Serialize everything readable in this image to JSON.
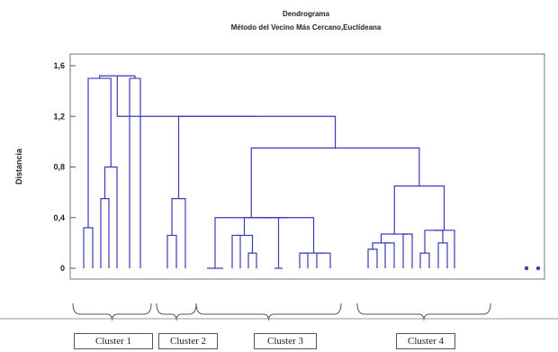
{
  "chart_data": {
    "type": "dendrogram",
    "title": "Dendrograma",
    "subtitle": "Método del Vecino Más Cercano,Euclídeana",
    "ylabel": "Distancia",
    "ylim": [
      0,
      1.6
    ],
    "yticks": [
      "0",
      "0,4",
      "0,8",
      "1,2",
      "1,6"
    ],
    "grid": false,
    "line_color": "#3a3ab8",
    "leaf_count": 36,
    "merges": [
      {
        "a": 0,
        "b": 1,
        "h": 0.32
      },
      {
        "a": 2,
        "b": 3,
        "h": 0.55
      },
      {
        "a": 2,
        "b": 4,
        "h": 0.8
      },
      {
        "a": 0,
        "b": 2,
        "h": 1.5
      },
      {
        "a": 5,
        "b": 6,
        "h": 1.5
      },
      {
        "a": 0,
        "b": 5,
        "h": 1.52
      },
      {
        "a": 7,
        "b": 8,
        "h": 0.26
      },
      {
        "a": 7,
        "b": 9,
        "h": 0.55
      },
      {
        "a": 10,
        "b": 11,
        "h": 0.0
      },
      {
        "a": 12,
        "b": 13,
        "h": 0.26
      },
      {
        "a": 14,
        "b": 15,
        "h": 0.12
      },
      {
        "a": 12,
        "b": 14,
        "h": 0.26
      },
      {
        "a": 16,
        "b": 17,
        "h": 0.0
      },
      {
        "a": 18,
        "b": 19,
        "h": 0.12
      },
      {
        "a": 20,
        "b": 21,
        "h": 0.12
      },
      {
        "a": 18,
        "b": 20,
        "h": 0.12
      },
      {
        "a": 12,
        "b": 16,
        "h": 0.4
      },
      {
        "a": 12,
        "b": 18,
        "h": 0.4
      },
      {
        "a": 10,
        "b": 12,
        "h": 0.4
      },
      {
        "a": 22,
        "b": 23,
        "h": 0.15
      },
      {
        "a": 24,
        "b": 25,
        "h": 0.2
      },
      {
        "a": 22,
        "b": 24,
        "h": 0.2
      },
      {
        "a": 26,
        "b": 27,
        "h": 0.27
      },
      {
        "a": 22,
        "b": 26,
        "h": 0.27
      },
      {
        "a": 28,
        "b": 29,
        "h": 0.12
      },
      {
        "a": 30,
        "b": 31,
        "h": 0.2
      },
      {
        "a": 28,
        "b": 30,
        "h": 0.3
      },
      {
        "a": 28,
        "b": 32,
        "h": 0.3
      },
      {
        "a": 22,
        "b": 28,
        "h": 0.65
      },
      {
        "a": 10,
        "b": 22,
        "h": 0.95
      },
      {
        "a": 7,
        "b": 10,
        "h": 1.2
      },
      {
        "a": 0,
        "b": 7,
        "h": 1.2
      }
    ],
    "extra_points": [
      0.0,
      0.0
    ],
    "clusters": [
      {
        "label": "Cluster 1",
        "from": 0,
        "to": 6
      },
      {
        "label": "Cluster 2",
        "from": 7,
        "to": 9
      },
      {
        "label": "Cluster 3",
        "from": 10,
        "to": 21
      },
      {
        "label": "Cluster 4",
        "from": 22,
        "to": 35
      }
    ]
  }
}
